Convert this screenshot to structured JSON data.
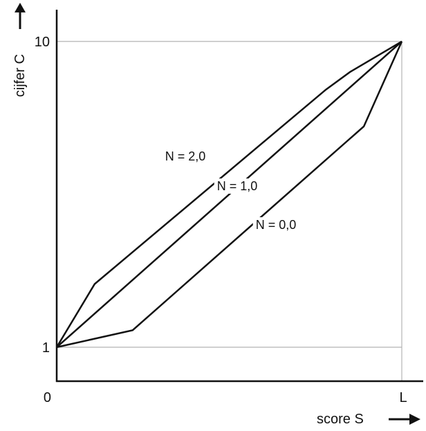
{
  "chart_data": {
    "type": "line",
    "title": "",
    "xlabel": "score S",
    "ylabel": "cijfer C",
    "xlim": [
      0,
      1
    ],
    "ylim": [
      0,
      10
    ],
    "x_ticks": [
      {
        "label": "0",
        "value": 0
      },
      {
        "label": "L",
        "value": 1
      }
    ],
    "y_ticks": [
      {
        "label": "1",
        "value": 1
      },
      {
        "label": "10",
        "value": 10
      }
    ],
    "reference_lines": [
      {
        "axis": "y",
        "value": 10
      },
      {
        "axis": "y",
        "value": 1
      },
      {
        "axis": "x",
        "value": 1
      }
    ],
    "series": [
      {
        "name": "N = 2,0",
        "points": [
          [
            0,
            1
          ],
          [
            0.11,
            2.86
          ],
          [
            0.78,
            8.58
          ],
          [
            0.85,
            9.1
          ],
          [
            1,
            10
          ]
        ]
      },
      {
        "name": "N = 1,0",
        "points": [
          [
            0,
            1
          ],
          [
            1,
            10
          ]
        ]
      },
      {
        "name": "N = 0,0",
        "points": [
          [
            0,
            1
          ],
          [
            0.22,
            1.5
          ],
          [
            0.89,
            7.5
          ],
          [
            1,
            10
          ]
        ]
      }
    ],
    "colors": {
      "line": "#111111",
      "axis": "#111111",
      "reference": "#b3b3b3",
      "background": "#ffffff"
    }
  }
}
